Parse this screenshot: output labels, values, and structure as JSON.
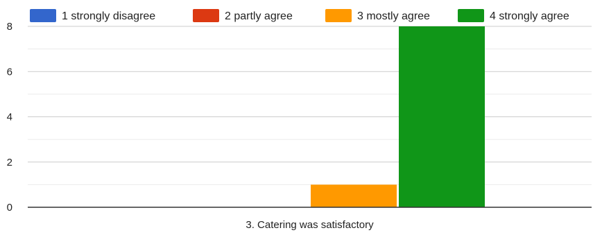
{
  "chart_data": {
    "type": "bar",
    "categories": [
      "3. Catering was satisfactory"
    ],
    "series": [
      {
        "name": "1 strongly disagree",
        "color": "#3366cc",
        "values": [
          0
        ]
      },
      {
        "name": "2 partly agree",
        "color": "#dc3912",
        "values": [
          0
        ]
      },
      {
        "name": "3 mostly agree",
        "color": "#ff9900",
        "values": [
          1
        ]
      },
      {
        "name": "4 strongly agree",
        "color": "#109618",
        "values": [
          8
        ]
      }
    ],
    "title": "",
    "xlabel": "",
    "ylabel": "",
    "ylim": [
      0,
      8
    ],
    "yticks": [
      0,
      2,
      4,
      6,
      8
    ],
    "grid": true,
    "legend_position": "top"
  }
}
